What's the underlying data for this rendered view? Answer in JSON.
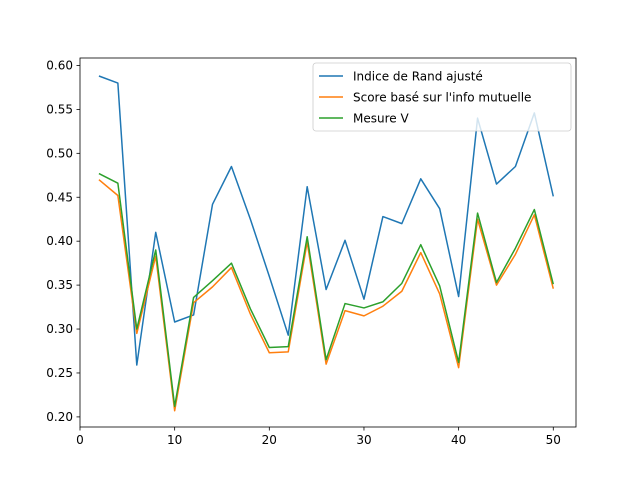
{
  "chart_data": {
    "type": "line",
    "x": [
      2,
      4,
      6,
      8,
      10,
      12,
      14,
      16,
      18,
      20,
      22,
      24,
      26,
      28,
      30,
      32,
      34,
      36,
      38,
      40,
      42,
      44,
      46,
      48,
      50
    ],
    "series": [
      {
        "name": "Indice de Rand ajusté",
        "color": "#1f77b4",
        "values": [
          0.588,
          0.58,
          0.259,
          0.41,
          0.308,
          0.316,
          0.442,
          0.485,
          0.425,
          0.36,
          0.293,
          0.462,
          0.345,
          0.401,
          0.334,
          0.428,
          0.42,
          0.471,
          0.437,
          0.337,
          0.54,
          0.465,
          0.485,
          0.546,
          0.451
        ]
      },
      {
        "name": "Score basé sur l'info mutuelle",
        "color": "#ff7f0e",
        "values": [
          0.47,
          0.452,
          0.295,
          0.383,
          0.207,
          0.33,
          0.348,
          0.37,
          0.317,
          0.273,
          0.274,
          0.399,
          0.26,
          0.321,
          0.315,
          0.326,
          0.343,
          0.387,
          0.34,
          0.256,
          0.425,
          0.35,
          0.385,
          0.43,
          0.346
        ]
      },
      {
        "name": "Mesure V",
        "color": "#2ca02c",
        "values": [
          0.477,
          0.466,
          0.3,
          0.39,
          0.212,
          0.336,
          0.355,
          0.375,
          0.323,
          0.279,
          0.28,
          0.405,
          0.265,
          0.329,
          0.324,
          0.331,
          0.352,
          0.396,
          0.349,
          0.262,
          0.432,
          0.353,
          0.392,
          0.436,
          0.351
        ]
      }
    ],
    "xlim": [
      0,
      52.4
    ],
    "ylim": [
      0.1885,
      0.6085
    ],
    "xticks": [
      0,
      10,
      20,
      30,
      40,
      50
    ],
    "yticks": [
      0.2,
      0.25,
      0.3,
      0.35,
      0.4,
      0.45,
      0.5,
      0.55,
      0.6
    ],
    "xtick_labels": [
      "0",
      "10",
      "20",
      "30",
      "40",
      "50"
    ],
    "ytick_labels": [
      "0.20",
      "0.25",
      "0.30",
      "0.35",
      "0.40",
      "0.45",
      "0.50",
      "0.55",
      "0.60"
    ],
    "grid": false,
    "legend": "upper right"
  }
}
